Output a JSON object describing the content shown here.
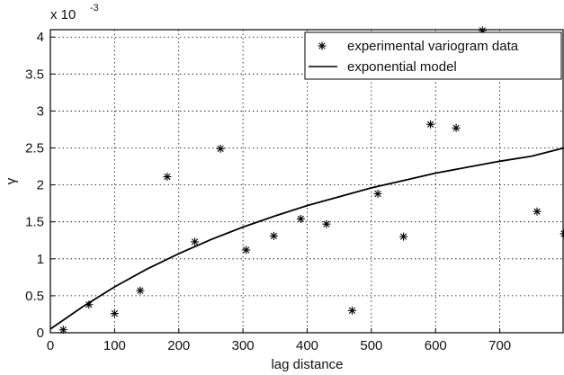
{
  "chart_data": {
    "type": "scatter",
    "xlabel": "lag distance",
    "ylabel": "γ",
    "multiplier_label": "x 10",
    "multiplier_exponent": "-3",
    "xlim": [
      0,
      800
    ],
    "ylim": [
      0,
      4.1
    ],
    "x_ticks": [
      0,
      100,
      200,
      300,
      400,
      500,
      600,
      700
    ],
    "y_ticks": [
      0,
      0.5,
      1,
      1.5,
      2,
      2.5,
      3,
      3.5,
      4
    ],
    "x_tick_labels": [
      "0",
      "100",
      "200",
      "300",
      "400",
      "500",
      "600",
      "700"
    ],
    "y_tick_labels": [
      "0",
      "0.5",
      "1",
      "1.5",
      "2",
      "2.5",
      "3",
      "3.5",
      "4"
    ],
    "grid": true,
    "legend_position": "top-right",
    "series": [
      {
        "name": "experimental variogram data",
        "kind": "markers",
        "marker": "asterisk",
        "x": [
          20,
          60,
          100,
          140,
          182,
          225,
          265,
          305,
          348,
          390,
          430,
          470,
          510,
          550,
          592,
          632,
          673,
          758,
          800
        ],
        "y": [
          0.04,
          0.38,
          0.26,
          0.57,
          2.11,
          1.23,
          2.49,
          1.12,
          1.31,
          1.54,
          1.47,
          0.3,
          1.88,
          1.3,
          2.82,
          2.77,
          4.09,
          1.64,
          1.34
        ]
      },
      {
        "name": "exponential model",
        "kind": "line",
        "x": [
          0,
          50,
          100,
          150,
          200,
          250,
          300,
          350,
          400,
          450,
          500,
          550,
          600,
          650,
          700,
          750,
          800
        ],
        "y": [
          0.05,
          0.35,
          0.62,
          0.86,
          1.07,
          1.26,
          1.43,
          1.58,
          1.72,
          1.84,
          1.96,
          2.06,
          2.16,
          2.24,
          2.32,
          2.39,
          2.5
        ]
      }
    ]
  }
}
